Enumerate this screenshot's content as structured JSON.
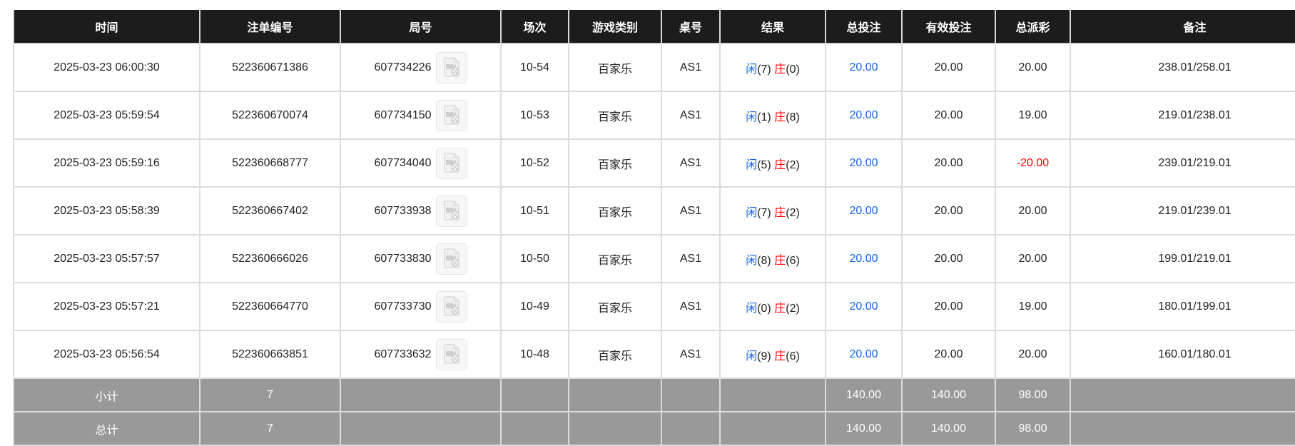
{
  "colors": {
    "header_bg": "#1c1c1c",
    "summary_bg": "#999999",
    "player": "#1565e8",
    "banker": "#ff0000",
    "negative": "#ff0000",
    "bet": "#1565e8"
  },
  "headers": [
    "时间",
    "注单编号",
    "局号",
    "场次",
    "游戏类别",
    "桌号",
    "结果",
    "总投注",
    "有效投注",
    "总派彩",
    "备注"
  ],
  "rows": [
    {
      "time": "2025-03-23 06:00:30",
      "bet_id": "522360671386",
      "round": "607734226",
      "icon": "video-replay-icon",
      "shoe": "10-54",
      "game": "百家乐",
      "table": "AS1",
      "player_label": "闲",
      "player": "(7)",
      "banker_label": "庄",
      "banker": "(0)",
      "total_bet": "20.00",
      "valid_bet": "20.00",
      "payout": "20.00",
      "note": "238.01/258.01"
    },
    {
      "time": "2025-03-23 05:59:54",
      "bet_id": "522360670074",
      "round": "607734150",
      "icon": "video-replay-icon",
      "shoe": "10-53",
      "game": "百家乐",
      "table": "AS1",
      "player_label": "闲",
      "player": "(1)",
      "banker_label": "庄",
      "banker": "(8)",
      "total_bet": "20.00",
      "valid_bet": "20.00",
      "payout": "19.00",
      "note": "219.01/238.01"
    },
    {
      "time": "2025-03-23 05:59:16",
      "bet_id": "522360668777",
      "round": "607734040",
      "icon": "video-replay-icon",
      "shoe": "10-52",
      "game": "百家乐",
      "table": "AS1",
      "player_label": "闲",
      "player": "(5)",
      "banker_label": "庄",
      "banker": "(2)",
      "total_bet": "20.00",
      "valid_bet": "20.00",
      "payout": "-20.00",
      "note": "239.01/219.01"
    },
    {
      "time": "2025-03-23 05:58:39",
      "bet_id": "522360667402",
      "round": "607733938",
      "icon": "video-replay-icon",
      "shoe": "10-51",
      "game": "百家乐",
      "table": "AS1",
      "player_label": "闲",
      "player": "(7)",
      "banker_label": "庄",
      "banker": "(2)",
      "total_bet": "20.00",
      "valid_bet": "20.00",
      "payout": "20.00",
      "note": "219.01/239.01"
    },
    {
      "time": "2025-03-23 05:57:57",
      "bet_id": "522360666026",
      "round": "607733830",
      "icon": "video-replay-icon",
      "shoe": "10-50",
      "game": "百家乐",
      "table": "AS1",
      "player_label": "闲",
      "player": "(8)",
      "banker_label": "庄",
      "banker": "(6)",
      "total_bet": "20.00",
      "valid_bet": "20.00",
      "payout": "20.00",
      "note": "199.01/219.01"
    },
    {
      "time": "2025-03-23 05:57:21",
      "bet_id": "522360664770",
      "round": "607733730",
      "icon": "video-replay-icon",
      "shoe": "10-49",
      "game": "百家乐",
      "table": "AS1",
      "player_label": "闲",
      "player": "(0)",
      "banker_label": "庄",
      "banker": "(2)",
      "total_bet": "20.00",
      "valid_bet": "20.00",
      "payout": "19.00",
      "note": "180.01/199.01"
    },
    {
      "time": "2025-03-23 05:56:54",
      "bet_id": "522360663851",
      "round": "607733632",
      "icon": "video-replay-icon",
      "shoe": "10-48",
      "game": "百家乐",
      "table": "AS1",
      "player_label": "闲",
      "player": "(9)",
      "banker_label": "庄",
      "banker": "(6)",
      "total_bet": "20.00",
      "valid_bet": "20.00",
      "payout": "20.00",
      "note": "160.01/180.01"
    }
  ],
  "summary": [
    {
      "label": "小计",
      "count": "7",
      "total_bet": "140.00",
      "valid_bet": "140.00",
      "payout": "98.00"
    },
    {
      "label": "总计",
      "count": "7",
      "total_bet": "140.00",
      "valid_bet": "140.00",
      "payout": "98.00"
    }
  ]
}
